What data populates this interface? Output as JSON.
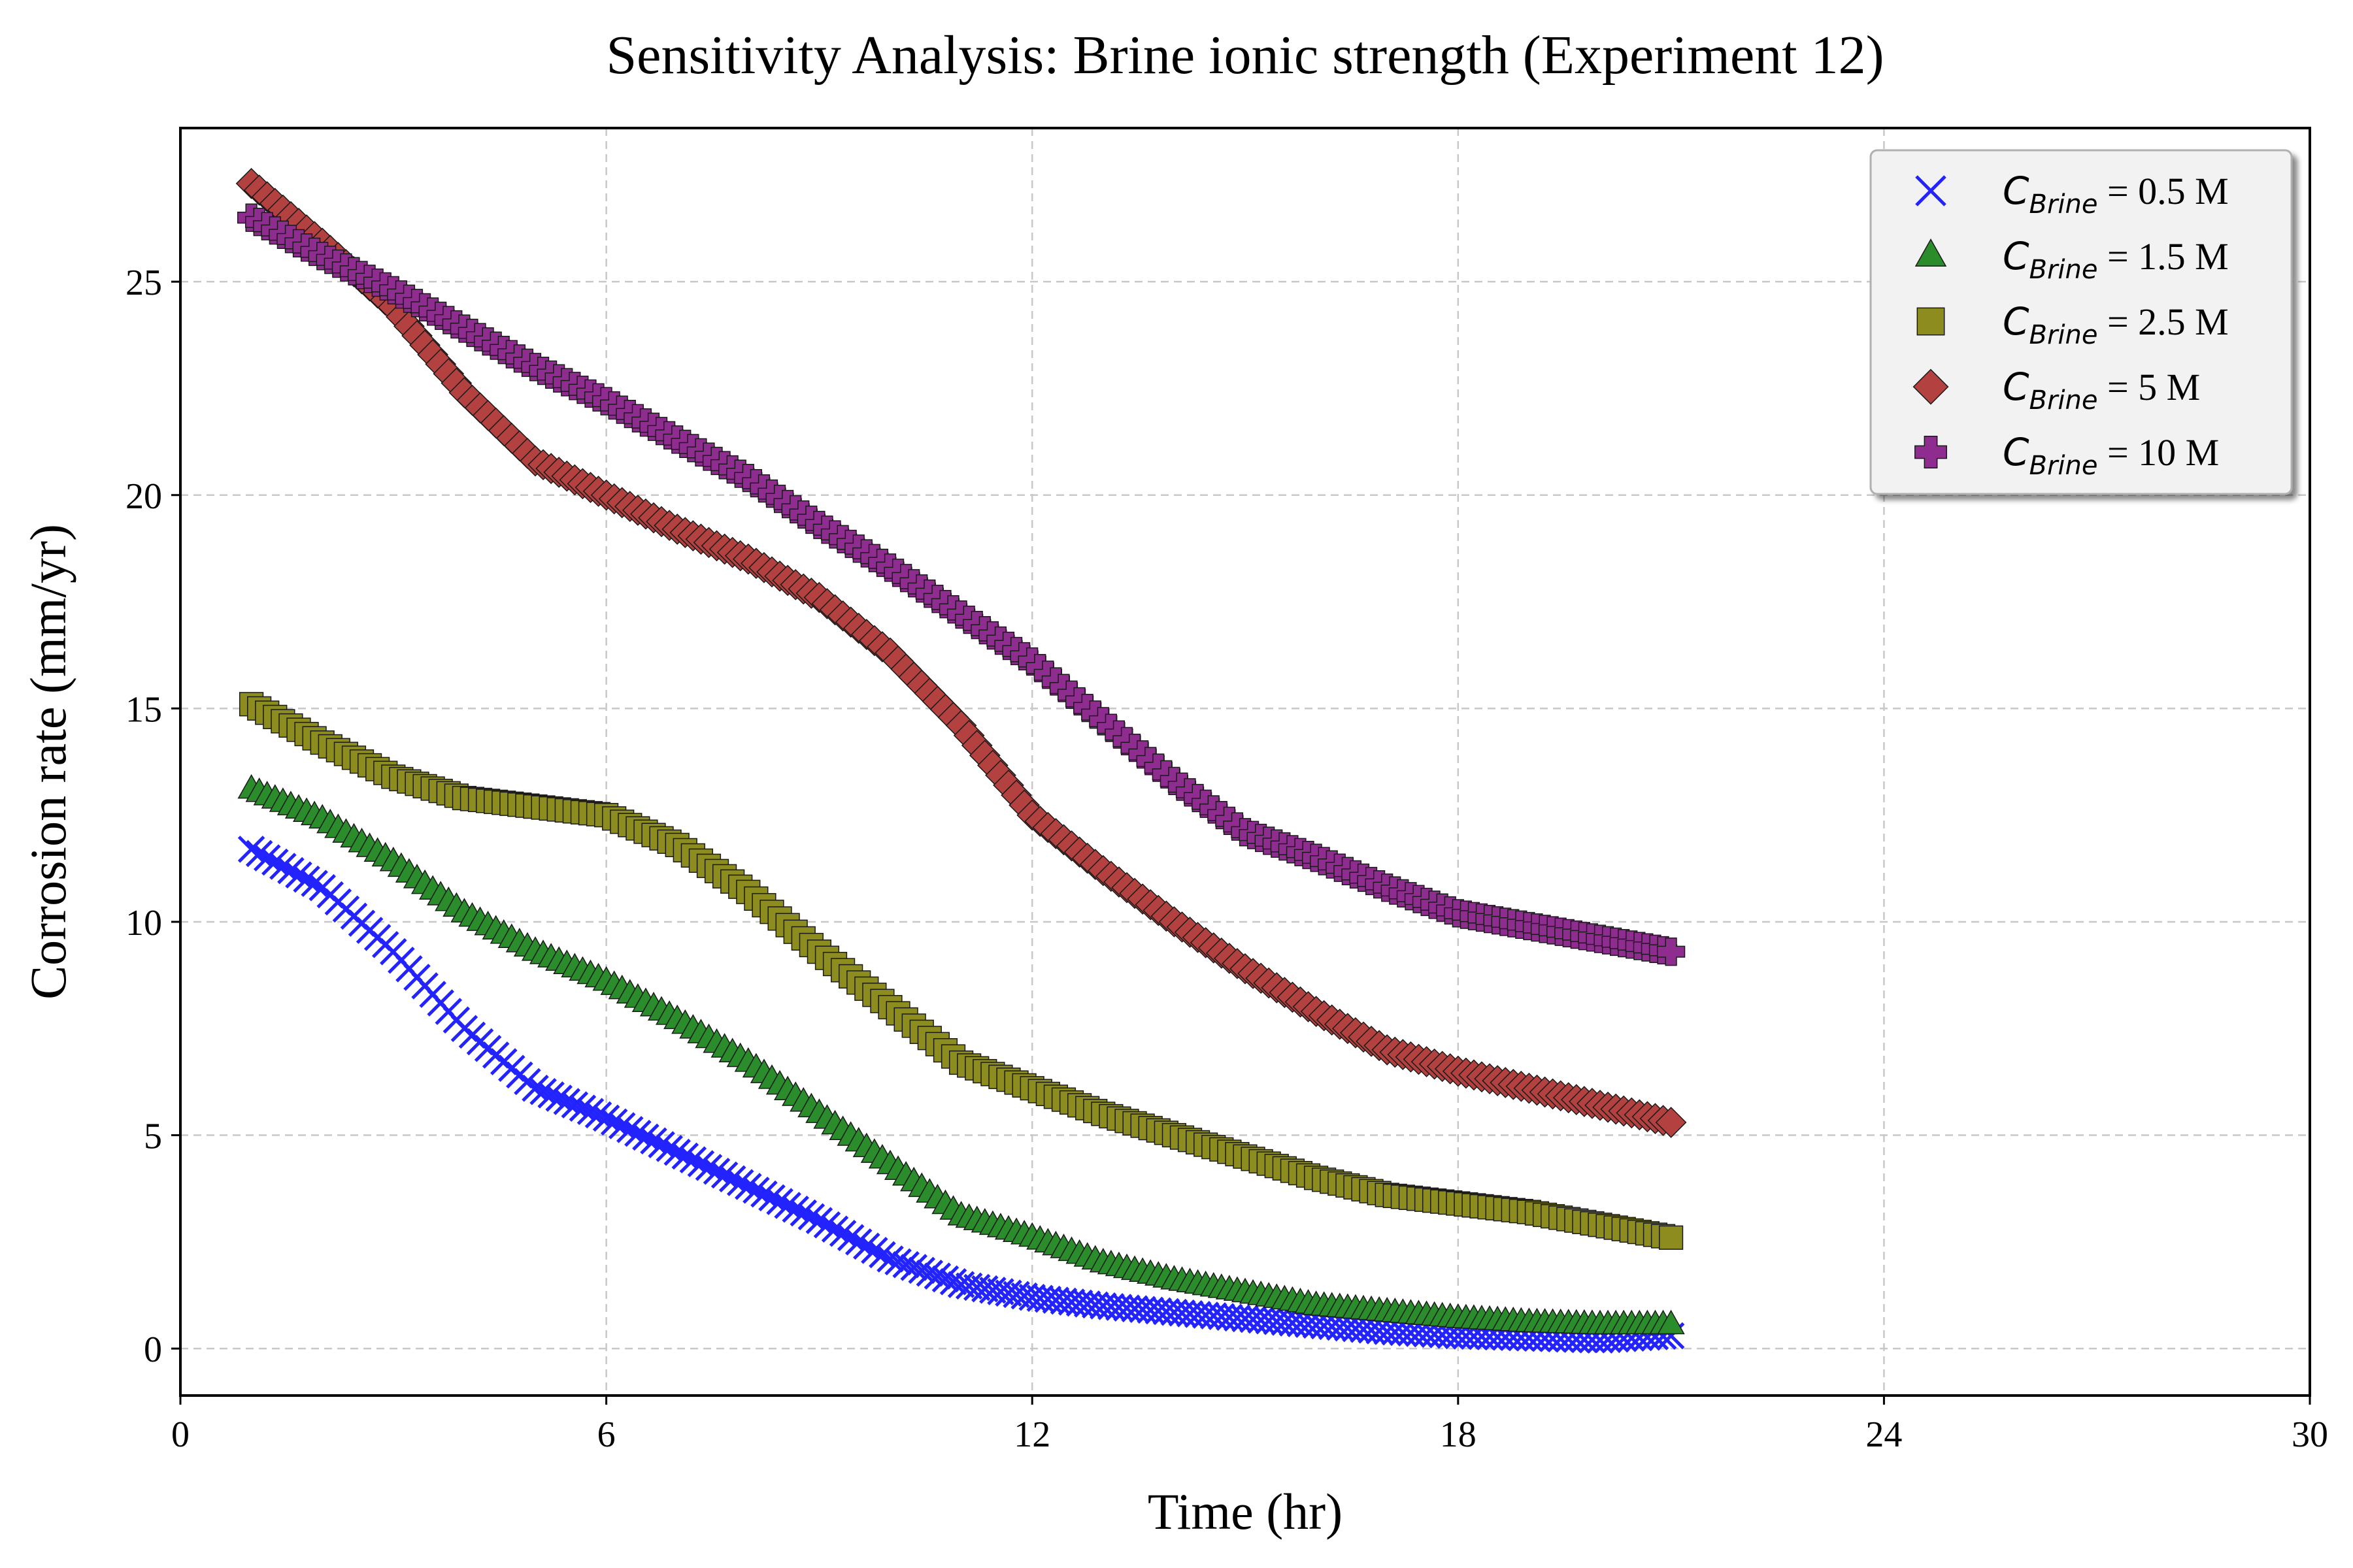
{
  "chart_data": {
    "type": "scatter",
    "title": "Sensitivity Analysis: Brine ionic strength (Experiment 12)",
    "xlabel": "Time (hr)",
    "ylabel": "Corrosion rate (mm/yr)",
    "xlim": [
      0,
      30
    ],
    "ylim": [
      -1.1,
      28.6
    ],
    "xticks": [
      0,
      6,
      12,
      18,
      24,
      30
    ],
    "yticks": [
      0,
      5,
      10,
      15,
      20,
      25
    ],
    "grid": true,
    "legend_position": "top-right",
    "series": [
      {
        "name": "C_Brine = 0.5 M",
        "legend_var": "C",
        "legend_sub": "Brine",
        "legend_rest": " = 0.5 M",
        "marker": "x",
        "color": "#2323ff",
        "points": [
          [
            1,
            11.7
          ],
          [
            2,
            10.8
          ],
          [
            3,
            9.3
          ],
          [
            4,
            7.5
          ],
          [
            5,
            6.1
          ],
          [
            6,
            5.4
          ],
          [
            7,
            4.6
          ],
          [
            8,
            3.8
          ],
          [
            9,
            3.0
          ],
          [
            10,
            2.1
          ],
          [
            11,
            1.5
          ],
          [
            12,
            1.2
          ],
          [
            13,
            1.0
          ],
          [
            14,
            0.85
          ],
          [
            15,
            0.7
          ],
          [
            16,
            0.55
          ],
          [
            17,
            0.4
          ],
          [
            18,
            0.3
          ],
          [
            19,
            0.25
          ],
          [
            20,
            0.2
          ],
          [
            21,
            0.3
          ]
        ]
      },
      {
        "name": "C_Brine = 1.5 M",
        "legend_var": "C",
        "legend_sub": "Brine",
        "legend_rest": " = 1.5 M",
        "marker": "triangle",
        "color": "#2a8c2a",
        "points": [
          [
            1,
            13.1
          ],
          [
            2,
            12.4
          ],
          [
            3,
            11.4
          ],
          [
            4,
            10.2
          ],
          [
            5,
            9.3
          ],
          [
            6,
            8.6
          ],
          [
            7,
            7.7
          ],
          [
            8,
            6.7
          ],
          [
            9,
            5.5
          ],
          [
            10,
            4.3
          ],
          [
            11,
            3.1
          ],
          [
            12,
            2.6
          ],
          [
            13,
            2.0
          ],
          [
            14,
            1.6
          ],
          [
            15,
            1.3
          ],
          [
            16,
            1.0
          ],
          [
            17,
            0.85
          ],
          [
            18,
            0.7
          ],
          [
            19,
            0.6
          ],
          [
            20,
            0.55
          ],
          [
            21,
            0.55
          ]
        ]
      },
      {
        "name": "C_Brine = 2.5 M",
        "legend_var": "C",
        "legend_sub": "Brine",
        "legend_rest": " = 2.5 M",
        "marker": "square",
        "color": "#8c8c1f",
        "points": [
          [
            1,
            15.1
          ],
          [
            2,
            14.2
          ],
          [
            3,
            13.4
          ],
          [
            4,
            12.9
          ],
          [
            5,
            12.7
          ],
          [
            6,
            12.5
          ],
          [
            7,
            11.8
          ],
          [
            8,
            10.7
          ],
          [
            9,
            9.3
          ],
          [
            10,
            8.0
          ],
          [
            11,
            6.7
          ],
          [
            12,
            6.1
          ],
          [
            13,
            5.5
          ],
          [
            14,
            5.0
          ],
          [
            15,
            4.5
          ],
          [
            16,
            4.0
          ],
          [
            17,
            3.6
          ],
          [
            18,
            3.4
          ],
          [
            19,
            3.2
          ],
          [
            20,
            2.9
          ],
          [
            21,
            2.6
          ]
        ]
      },
      {
        "name": "C_Brine = 5 M",
        "legend_var": "C",
        "legend_sub": "Brine",
        "legend_rest": " = 5 M",
        "marker": "diamond",
        "color": "#b3413f",
        "points": [
          [
            1,
            27.3
          ],
          [
            2,
            25.9
          ],
          [
            3,
            24.4
          ],
          [
            4,
            22.4
          ],
          [
            5,
            20.8
          ],
          [
            6,
            20.0
          ],
          [
            7,
            19.2
          ],
          [
            8,
            18.5
          ],
          [
            9,
            17.6
          ],
          [
            10,
            16.3
          ],
          [
            11,
            14.6
          ],
          [
            12,
            12.5
          ],
          [
            13,
            11.2
          ],
          [
            14,
            10.0
          ],
          [
            15,
            8.9
          ],
          [
            16,
            7.9
          ],
          [
            17,
            7.0
          ],
          [
            18,
            6.5
          ],
          [
            19,
            6.1
          ],
          [
            20,
            5.7
          ],
          [
            21,
            5.3
          ]
        ]
      },
      {
        "name": "C_Brine = 10 M",
        "legend_var": "C",
        "legend_sub": "Brine",
        "legend_rest": " = 10 M",
        "marker": "plus",
        "color": "#8f2c8f",
        "points": [
          [
            1,
            26.5
          ],
          [
            2,
            25.6
          ],
          [
            3,
            24.8
          ],
          [
            4,
            23.9
          ],
          [
            5,
            23.0
          ],
          [
            6,
            22.2
          ],
          [
            7,
            21.3
          ],
          [
            8,
            20.4
          ],
          [
            9,
            19.3
          ],
          [
            10,
            18.3
          ],
          [
            11,
            17.2
          ],
          [
            12,
            16.1
          ],
          [
            13,
            14.7
          ],
          [
            14,
            13.3
          ],
          [
            15,
            12.1
          ],
          [
            16,
            11.5
          ],
          [
            17,
            10.8
          ],
          [
            18,
            10.2
          ],
          [
            19,
            9.9
          ],
          [
            20,
            9.6
          ],
          [
            21,
            9.3
          ]
        ]
      }
    ]
  }
}
